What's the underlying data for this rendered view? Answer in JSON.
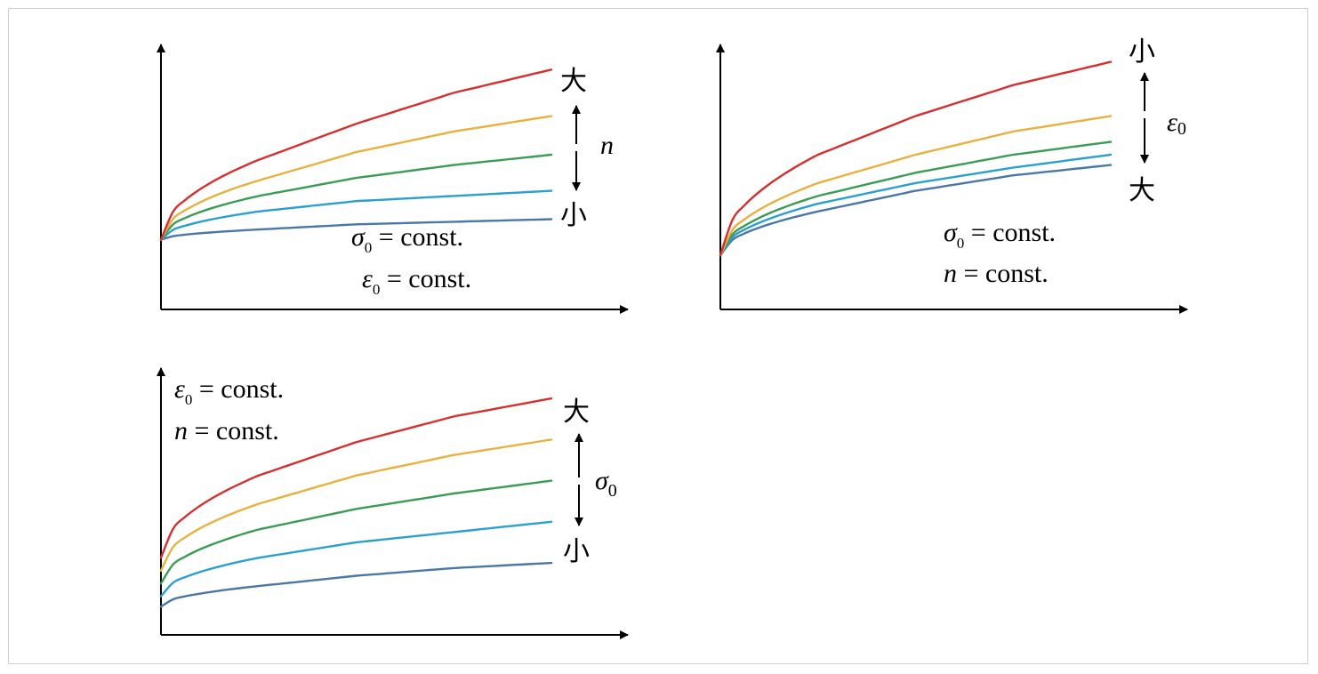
{
  "chart_data": [
    {
      "type": "line",
      "title": "",
      "xlabel": "",
      "ylabel": "",
      "series": [
        {
          "values": [
            [
              0,
              0.27
            ],
            [
              0.25,
              0.58
            ],
            [
              0.5,
              0.72
            ],
            [
              0.75,
              0.84
            ],
            [
              1,
              0.93
            ]
          ],
          "color": "#d62f2f"
        },
        {
          "values": [
            [
              0,
              0.27
            ],
            [
              0.25,
              0.5
            ],
            [
              0.5,
              0.61
            ],
            [
              0.75,
              0.69
            ],
            [
              1,
              0.75
            ]
          ],
          "color": "#e8b13e"
        },
        {
          "values": [
            [
              0,
              0.27
            ],
            [
              0.25,
              0.44
            ],
            [
              0.5,
              0.51
            ],
            [
              0.75,
              0.56
            ],
            [
              1,
              0.6
            ]
          ],
          "color": "#3b9c55"
        },
        {
          "values": [
            [
              0,
              0.27
            ],
            [
              0.25,
              0.38
            ],
            [
              0.5,
              0.42
            ],
            [
              0.75,
              0.44
            ],
            [
              1,
              0.46
            ]
          ],
          "color": "#2ba0cf"
        },
        {
          "values": [
            [
              0,
              0.27
            ],
            [
              0.25,
              0.31
            ],
            [
              0.5,
              0.33
            ],
            [
              0.75,
              0.34
            ],
            [
              1,
              0.35
            ]
          ],
          "color": "#4a77a6"
        }
      ],
      "annotations": {
        "top_label": "大",
        "bottom_label": "小",
        "arrow_variable": "n",
        "condition_1": {
          "symbol": "σ",
          "sub": "0",
          "rest": " = const."
        },
        "condition_2": {
          "symbol": "ε",
          "sub": "0",
          "rest": " = const."
        }
      }
    },
    {
      "type": "line",
      "title": "",
      "xlabel": "",
      "ylabel": "",
      "series": [
        {
          "values": [
            [
              0,
              0.21
            ],
            [
              0.25,
              0.6
            ],
            [
              0.5,
              0.75
            ],
            [
              0.75,
              0.87
            ],
            [
              1,
              0.96
            ]
          ],
          "color": "#d62f2f"
        },
        {
          "values": [
            [
              0,
              0.21
            ],
            [
              0.25,
              0.49
            ],
            [
              0.5,
              0.6
            ],
            [
              0.75,
              0.69
            ],
            [
              1,
              0.75
            ]
          ],
          "color": "#e8b13e"
        },
        {
          "values": [
            [
              0,
              0.21
            ],
            [
              0.25,
              0.44
            ],
            [
              0.5,
              0.53
            ],
            [
              0.75,
              0.6
            ],
            [
              1,
              0.65
            ]
          ],
          "color": "#3b9c55"
        },
        {
          "values": [
            [
              0,
              0.21
            ],
            [
              0.25,
              0.41
            ],
            [
              0.5,
              0.49
            ],
            [
              0.75,
              0.55
            ],
            [
              1,
              0.6
            ]
          ],
          "color": "#2ba0cf"
        },
        {
          "values": [
            [
              0,
              0.21
            ],
            [
              0.25,
              0.38
            ],
            [
              0.5,
              0.46
            ],
            [
              0.75,
              0.52
            ],
            [
              1,
              0.56
            ]
          ],
          "color": "#4a77a6"
        }
      ],
      "annotations": {
        "top_label": "小",
        "bottom_label": "大",
        "arrow_variable": {
          "symbol": "ε",
          "sub": "0"
        },
        "condition_1": {
          "symbol": "σ",
          "sub": "0",
          "rest": " = const."
        },
        "condition_2": {
          "symbol": "n",
          "rest": " = const."
        }
      }
    },
    {
      "type": "line",
      "title": "",
      "xlabel": "",
      "ylabel": "",
      "series": [
        {
          "values": [
            [
              0,
              0.3
            ],
            [
              0.25,
              0.62
            ],
            [
              0.5,
              0.75
            ],
            [
              0.75,
              0.85
            ],
            [
              1,
              0.92
            ]
          ],
          "color": "#d62f2f"
        },
        {
          "values": [
            [
              0,
              0.25
            ],
            [
              0.25,
              0.51
            ],
            [
              0.5,
              0.62
            ],
            [
              0.75,
              0.7
            ],
            [
              1,
              0.76
            ]
          ],
          "color": "#e8b13e"
        },
        {
          "values": [
            [
              0,
              0.2
            ],
            [
              0.25,
              0.41
            ],
            [
              0.5,
              0.49
            ],
            [
              0.75,
              0.55
            ],
            [
              1,
              0.6
            ]
          ],
          "color": "#3b9c55"
        },
        {
          "values": [
            [
              0,
              0.15
            ],
            [
              0.25,
              0.3
            ],
            [
              0.5,
              0.36
            ],
            [
              0.75,
              0.4
            ],
            [
              1,
              0.44
            ]
          ],
          "color": "#2ba0cf"
        },
        {
          "values": [
            [
              0,
              0.11
            ],
            [
              0.25,
              0.19
            ],
            [
              0.5,
              0.23
            ],
            [
              0.75,
              0.26
            ],
            [
              1,
              0.28
            ]
          ],
          "color": "#4a77a6"
        }
      ],
      "annotations": {
        "top_label": "大",
        "bottom_label": "小",
        "arrow_variable": {
          "symbol": "σ",
          "sub": "0"
        },
        "condition_1": {
          "symbol": "ε",
          "sub": "0",
          "rest": " = const."
        },
        "condition_2": {
          "symbol": "n",
          "rest": " = const."
        }
      }
    }
  ]
}
